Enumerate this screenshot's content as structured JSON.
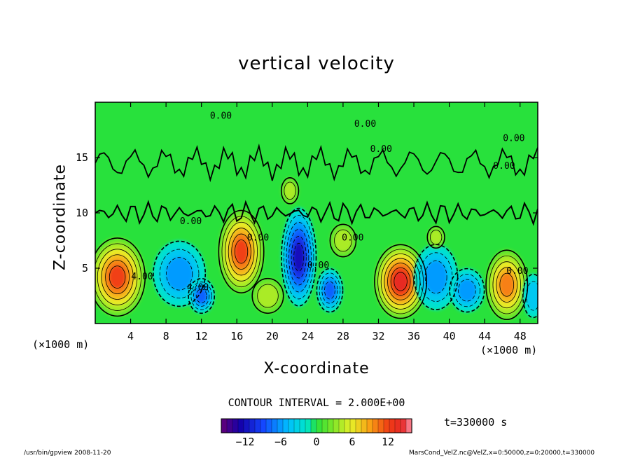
{
  "chart_data": {
    "type": "heatmap",
    "title": "vertical velocity",
    "xlabel": "X-coordinate",
    "ylabel": "Z-coordinate",
    "x_unit_left": "(×1000 m)",
    "x_unit_right": "(×1000 m)",
    "xlim": [
      0,
      50
    ],
    "ylim": [
      0,
      20
    ],
    "x_ticks": [
      "4",
      "8",
      "12",
      "16",
      "20",
      "24",
      "28",
      "32",
      "36",
      "40",
      "44",
      "48"
    ],
    "y_ticks": [
      "5",
      "10",
      "15"
    ],
    "contour_interval_text": "CONTOUR INTERVAL = 2.000E+00",
    "contour_labels": [
      {
        "text": "4.00",
        "x": 5.3,
        "z": 4.0
      },
      {
        "text": "4.00",
        "x": 11.6,
        "z": 3.0
      },
      {
        "text": "0.00",
        "x": 10.8,
        "z": 9.0
      },
      {
        "text": "0.00",
        "x": 18.4,
        "z": 7.5
      },
      {
        "text": "0.00",
        "x": 25.2,
        "z": 5.0
      },
      {
        "text": "0.00",
        "x": 29.1,
        "z": 7.5
      },
      {
        "text": "0.00",
        "x": 14.2,
        "z": 18.5
      },
      {
        "text": "0.00",
        "x": 30.5,
        "z": 17.8
      },
      {
        "text": "0.00",
        "x": 32.3,
        "z": 15.5
      },
      {
        "text": "0.00",
        "x": 47.3,
        "z": 16.5
      },
      {
        "text": "0.00",
        "x": 46.2,
        "z": 14.0
      },
      {
        "text": "0.00",
        "x": 47.7,
        "z": 4.5
      }
    ],
    "cells": [
      {
        "x": 2.5,
        "z": 4.2,
        "value": 12,
        "rx": 3.2,
        "rz": 3.6
      },
      {
        "x": 9.5,
        "z": 4.5,
        "value": -6,
        "rx": 3.0,
        "rz": 3.0
      },
      {
        "x": 12.0,
        "z": 2.5,
        "value": -8,
        "rx": 1.5,
        "rz": 1.6
      },
      {
        "x": 16.5,
        "z": 6.5,
        "value": 12,
        "rx": 2.6,
        "rz": 3.8
      },
      {
        "x": 19.5,
        "z": 2.5,
        "value": 4,
        "rx": 1.8,
        "rz": 1.6
      },
      {
        "x": 23.0,
        "z": 6.0,
        "value": -12,
        "rx": 2.0,
        "rz": 4.5
      },
      {
        "x": 26.5,
        "z": 3.0,
        "value": -8,
        "rx": 1.5,
        "rz": 2.0
      },
      {
        "x": 28.0,
        "z": 7.5,
        "value": 4,
        "rx": 1.5,
        "rz": 1.5
      },
      {
        "x": 34.5,
        "z": 3.8,
        "value": 14,
        "rx": 3.0,
        "rz": 3.4
      },
      {
        "x": 38.5,
        "z": 4.2,
        "value": -6,
        "rx": 2.5,
        "rz": 3.0
      },
      {
        "x": 42.0,
        "z": 3.0,
        "value": -6,
        "rx": 2.0,
        "rz": 2.0
      },
      {
        "x": 46.5,
        "z": 3.5,
        "value": 10,
        "rx": 2.4,
        "rz": 3.2
      },
      {
        "x": 49.5,
        "z": 2.5,
        "value": -4,
        "rx": 1.2,
        "rz": 2.0
      },
      {
        "x": 38.5,
        "z": 7.8,
        "value": 4,
        "rx": 1.0,
        "rz": 1.0
      },
      {
        "x": 22.0,
        "z": 12.0,
        "value": 4,
        "rx": 1.0,
        "rz": 1.2
      }
    ],
    "colorbar": {
      "ticks": [
        "−12",
        "−6",
        "0",
        "6",
        "12"
      ],
      "tick_values": [
        -12,
        -6,
        0,
        6,
        12
      ],
      "range": [
        -16,
        16
      ]
    }
  },
  "time_label": "t=330000 s",
  "footer_left": "/usr/bin/gpview  2008-11-20",
  "footer_right": "MarsCond_VelZ.nc@VelZ,x=0:50000,z=0:20000,t=330000"
}
